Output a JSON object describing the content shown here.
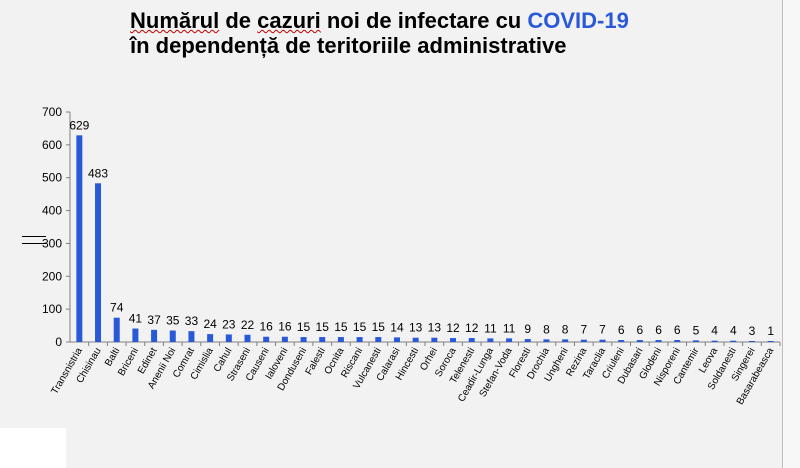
{
  "title": {
    "line1_part1": "Numărul",
    "line1_part2": " de ",
    "line1_part3": "cazuri",
    "line1_part4": " noi de infectare cu ",
    "line1_highlight": "COVID-19",
    "line2": "în dependență de teritoriile administrative"
  },
  "colors": {
    "bar": "#2a59d8",
    "title_highlight": "#2a59d8",
    "background": "#f2f2f2"
  },
  "chart_data": {
    "type": "bar",
    "title": "Numărul de cazuri noi de infectare cu COVID-19 în dependență de teritoriile administrative",
    "xlabel": "",
    "ylabel": "",
    "ylim": [
      0,
      700
    ],
    "yticks": [
      0,
      100,
      200,
      300,
      400,
      500,
      600,
      700
    ],
    "grid": false,
    "legend": "left",
    "categories": [
      "Transnistria",
      "Chisinau",
      "Balti",
      "Briceni",
      "Edinet",
      "Anenii Noi",
      "Comrat",
      "Cimislia",
      "Cahul",
      "Straseni",
      "Causeni",
      "Ialoveni",
      "Donduseni",
      "Falesti",
      "Ocnita",
      "Riscani",
      "Vulcanesti",
      "Calarasi",
      "Hincesti",
      "Orhei",
      "Soroca",
      "Telenesti",
      "Ceadir-Lunga",
      "Stefan-Voda",
      "Floresti",
      "Drochia",
      "Ungheni",
      "Rezina",
      "Taraclia",
      "Criuleni",
      "Dubasari",
      "Glodeni",
      "Nisporeni",
      "Cantemir",
      "Leova",
      "Soldanesti",
      "Singerei",
      "Basarabeasca"
    ],
    "values": [
      629,
      483,
      74,
      41,
      37,
      35,
      33,
      24,
      23,
      22,
      16,
      16,
      15,
      15,
      15,
      15,
      15,
      14,
      13,
      13,
      12,
      12,
      11,
      11,
      9,
      8,
      8,
      7,
      7,
      6,
      6,
      6,
      6,
      5,
      4,
      4,
      3,
      1
    ]
  }
}
